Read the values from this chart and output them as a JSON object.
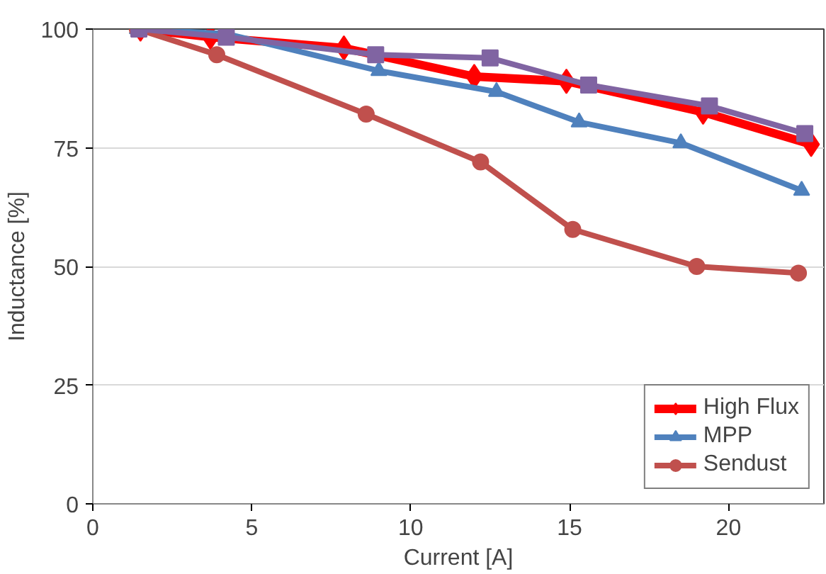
{
  "chart_data": {
    "type": "line",
    "xlabel": "Current [A]",
    "ylabel": "Inductance [%]",
    "xlim": [
      0,
      23
    ],
    "xticks": [
      0,
      5,
      10,
      15,
      20
    ],
    "ylim": [
      0,
      100
    ],
    "yticks": [
      0,
      25,
      50,
      75,
      100
    ],
    "grid": "y",
    "legend": "bottom right",
    "line_style": "solid",
    "series": [
      {
        "name": "High Flux",
        "color": "#ff0000",
        "marker": "diamond",
        "x": [
          1.5,
          3.7,
          7.9,
          12.0,
          14.9,
          19.2,
          22.6
        ],
        "values": [
          100,
          98.3,
          96,
          90,
          89,
          82.5,
          75.7
        ]
      },
      {
        "name": "MPP",
        "color": "#4f81bd",
        "marker": "triangle",
        "x": [
          1.4,
          4.2,
          9.0,
          12.7,
          15.3,
          18.5,
          22.3
        ],
        "values": [
          100,
          99,
          91.2,
          86.8,
          80.4,
          76,
          66
        ]
      },
      {
        "name": "Sendust",
        "color": "#c0504d",
        "marker": "circle",
        "x": [
          1.4,
          3.9,
          8.6,
          12.2,
          15.1,
          19.0,
          22.2
        ],
        "values": [
          100,
          94.6,
          82.1,
          72,
          57.8,
          50,
          48.6
        ]
      },
      {
        "color": "#8064a2",
        "marker": "square",
        "x": [
          1.45,
          4.2,
          8.9,
          12.5,
          15.6,
          19.4,
          22.4
        ],
        "values": [
          100,
          98.3,
          94.6,
          93.9,
          88.2,
          83.8,
          78
        ]
      }
    ]
  }
}
